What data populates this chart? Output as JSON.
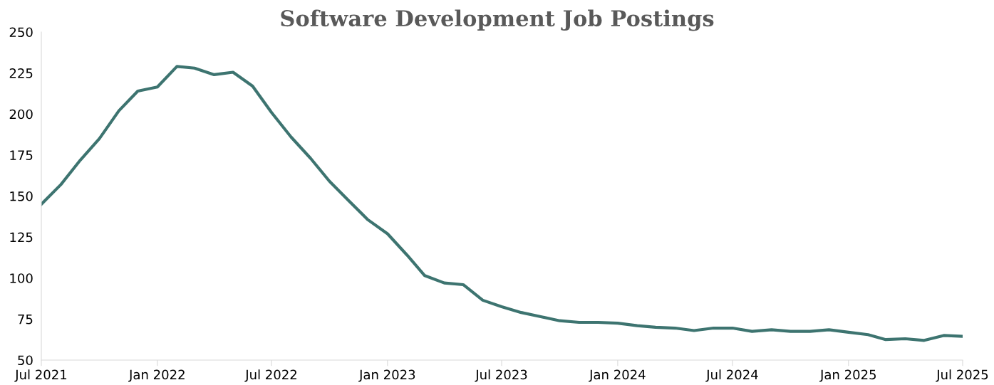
{
  "chart_data": {
    "type": "line",
    "title": "Software Development Job Postings",
    "x": [
      "2021-07",
      "2021-08",
      "2021-09",
      "2021-10",
      "2021-11",
      "2021-12",
      "2022-01",
      "2022-02",
      "2022-03",
      "2022-04",
      "2022-05",
      "2022-06",
      "2022-07",
      "2022-08",
      "2022-09",
      "2022-10",
      "2022-11",
      "2022-12",
      "2023-01",
      "2023-02",
      "2023-03",
      "2023-04",
      "2023-05",
      "2023-06",
      "2023-07",
      "2023-08",
      "2023-09",
      "2023-10",
      "2023-11",
      "2023-12",
      "2024-01",
      "2024-02",
      "2024-03",
      "2024-04",
      "2024-05",
      "2024-06",
      "2024-07",
      "2024-08",
      "2024-09",
      "2024-10",
      "2024-11",
      "2024-12",
      "2025-01",
      "2025-02",
      "2025-03",
      "2025-04",
      "2025-05",
      "2025-06",
      "2025-07"
    ],
    "series": [
      {
        "color": "#3d7470",
        "values": [
          145,
          157,
          172,
          185,
          202,
          214,
          216.5,
          229,
          228,
          224,
          225.5,
          217,
          201,
          186,
          173,
          159,
          147,
          135.5,
          127,
          114,
          101.5,
          97,
          96,
          86.5,
          82.5,
          79,
          76.5,
          74,
          73,
          73,
          72.5,
          71,
          70,
          69.5,
          68,
          69.5,
          69.5,
          67.5,
          68.5,
          67.5,
          67.5,
          68.5,
          67,
          65.5,
          62.5,
          63,
          62,
          65,
          64.5
        ]
      }
    ],
    "xlim": [
      "2021-07",
      "2025-07"
    ],
    "xticks": [
      {
        "value": "2021-07",
        "label": "Jul 2021"
      },
      {
        "value": "2022-01",
        "label": "Jan 2022"
      },
      {
        "value": "2022-07",
        "label": "Jul 2022"
      },
      {
        "value": "2023-01",
        "label": "Jan 2023"
      },
      {
        "value": "2023-07",
        "label": "Jul 2023"
      },
      {
        "value": "2024-01",
        "label": "Jan 2024"
      },
      {
        "value": "2024-07",
        "label": "Jul 2024"
      },
      {
        "value": "2025-01",
        "label": "Jan 2025"
      },
      {
        "value": "2025-07",
        "label": "Jul 2025"
      }
    ],
    "ylim": [
      50,
      250
    ],
    "yticks": [
      50,
      75,
      100,
      125,
      150,
      175,
      200,
      225,
      250
    ],
    "grid": false,
    "marker": "none",
    "line_style": "solid"
  }
}
